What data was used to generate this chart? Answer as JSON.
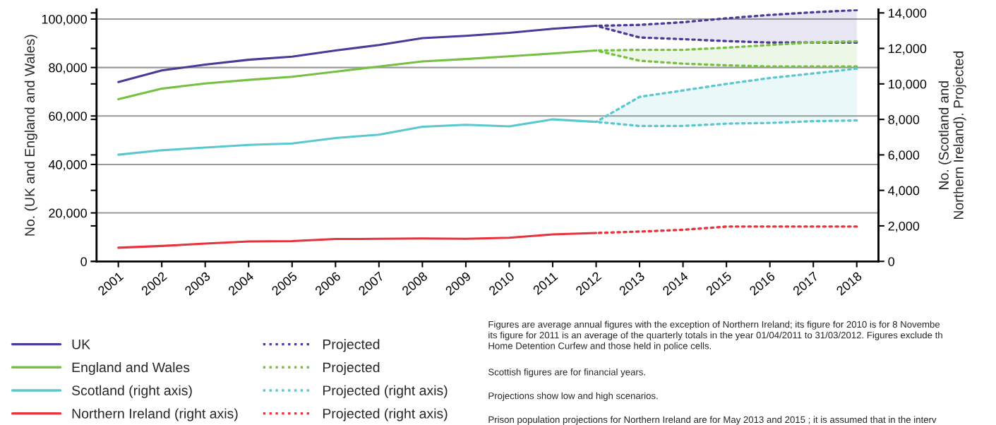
{
  "chart_data": {
    "type": "line",
    "ylabel": "No. (UK and England and Wales)",
    "y2label": "No. (Scotland and\nNorthern Ireland). Projected",
    "xlim": [
      2000.5,
      2018.5
    ],
    "xticks": [
      2001,
      2002,
      2003,
      2004,
      2005,
      2006,
      2007,
      2008,
      2009,
      2010,
      2011,
      2012,
      2013,
      2014,
      2015,
      2016,
      2017,
      2018
    ],
    "ylim": [
      0,
      104000
    ],
    "yticks": [
      0,
      {
        "value": 20000,
        "label": "20,000"
      },
      {
        "value": 40000,
        "label": "40,000"
      },
      {
        "value": 60000,
        "label": "60,000"
      },
      {
        "value": 80000,
        "label": "80,000"
      },
      {
        "value": 100000,
        "label": "100,000"
      }
    ],
    "y2lim": [
      0,
      14200
    ],
    "y2ticks": [
      0,
      {
        "value": 2000,
        "label": "2,000"
      },
      {
        "value": 4000,
        "label": "4,000"
      },
      {
        "value": 6000,
        "label": "6,000"
      },
      {
        "value": 8000,
        "label": "8,000"
      },
      {
        "value": 10000,
        "label": "10,000"
      },
      {
        "value": 12000,
        "label": "12,000"
      },
      {
        "value": 14000,
        "label": "14,000"
      }
    ],
    "grid": "y",
    "legend": "bottom",
    "marker": "none",
    "series": [
      {
        "name": "UK",
        "color": "#4b3a9a",
        "line_style": "solid",
        "x": [
          2001,
          2002,
          2003,
          2004,
          2005,
          2006,
          2007,
          2008,
          2009,
          2010,
          2011,
          2012
        ],
        "values": [
          74000,
          78800,
          81200,
          83200,
          84500,
          87000,
          89300,
          92100,
          93100,
          94300,
          96000,
          97200
        ]
      },
      {
        "name": "England and Wales",
        "color": "#76c043",
        "line_style": "solid",
        "x": [
          2001,
          2002,
          2003,
          2004,
          2005,
          2006,
          2007,
          2008,
          2009,
          2010,
          2011,
          2012
        ],
        "values": [
          66900,
          71300,
          73400,
          74900,
          76200,
          78300,
          80400,
          82500,
          83500,
          84600,
          85800,
          87000
        ]
      },
      {
        "name": "Scotland (right axis)",
        "color": "#5bc8d0",
        "line_style": "solid",
        "axis": "y2",
        "x": [
          2001,
          2002,
          2003,
          2004,
          2005,
          2006,
          2007,
          2008,
          2009,
          2010,
          2011,
          2012
        ],
        "values": [
          6010,
          6260,
          6410,
          6560,
          6640,
          6950,
          7140,
          7590,
          7700,
          7610,
          8000,
          7860
        ]
      },
      {
        "name": "Northern Ireland (right axis)",
        "color": "#e8323c",
        "line_style": "solid",
        "axis": "y2",
        "x": [
          2001,
          2002,
          2003,
          2004,
          2005,
          2006,
          2007,
          2008,
          2009,
          2010,
          2011,
          2012
        ],
        "values": [
          770,
          870,
          1000,
          1120,
          1140,
          1260,
          1270,
          1290,
          1270,
          1330,
          1520,
          1600
        ]
      },
      {
        "name": "Projected",
        "color": "#4b3a9a",
        "line_style": "dotted",
        "x": [
          2012,
          2013,
          2014,
          2015,
          2016,
          2017,
          2018
        ],
        "values": [
          97200,
          97600,
          98700,
          100300,
          101700,
          102800,
          103700
        ],
        "lower": [
          97200,
          92400,
          91700,
          90900,
          90300,
          90300,
          90300
        ],
        "upper": [
          97200,
          97600,
          98700,
          100300,
          101700,
          102800,
          103700
        ]
      },
      {
        "color": "#4b3a9a",
        "line_style": "dotted",
        "x": [
          2012,
          2013,
          2014,
          2015,
          2016,
          2017,
          2018
        ],
        "values": [
          97200,
          92400,
          91700,
          90900,
          90300,
          90300,
          90300
        ]
      },
      {
        "name": "Projected",
        "color": "#76c043",
        "line_style": "dotted",
        "x": [
          2012,
          2013,
          2014,
          2015,
          2016,
          2017,
          2018
        ],
        "values": [
          87000,
          87300,
          87300,
          88200,
          89300,
          90400,
          90800
        ],
        "lower": [
          87000,
          82800,
          81600,
          80900,
          80400,
          80400,
          80400
        ],
        "upper": [
          87000,
          87300,
          87300,
          88200,
          89300,
          90400,
          90800
        ]
      },
      {
        "color": "#76c043",
        "line_style": "dotted",
        "x": [
          2012,
          2013,
          2014,
          2015,
          2016,
          2017,
          2018
        ],
        "values": [
          87000,
          82800,
          81600,
          80900,
          80400,
          80400,
          80400
        ]
      },
      {
        "name": "Projected (right axis)",
        "color": "#5bc8d0",
        "line_style": "dotted",
        "axis": "y2",
        "x": [
          2012,
          2013,
          2014,
          2015,
          2016,
          2017,
          2018
        ],
        "values": [
          7860,
          9270,
          9630,
          10000,
          10330,
          10590,
          10860
        ],
        "lower": [
          7860,
          7630,
          7630,
          7760,
          7800,
          7900,
          7940
        ],
        "upper": [
          7860,
          9270,
          9630,
          10000,
          10330,
          10590,
          10860
        ]
      },
      {
        "color": "#5bc8d0",
        "line_style": "dotted",
        "axis": "y2",
        "x": [
          2012,
          2013,
          2014,
          2015,
          2016,
          2017,
          2018
        ],
        "values": [
          7860,
          7630,
          7630,
          7760,
          7800,
          7900,
          7940
        ]
      },
      {
        "name": "Projected (right axis)",
        "color": "#e8323c",
        "line_style": "dotted",
        "axis": "y2",
        "x": [
          2012,
          2013,
          2014,
          2015,
          2016,
          2017,
          2018
        ],
        "values": [
          1600,
          1680,
          1780,
          1960,
          1960,
          1960,
          1960
        ]
      }
    ],
    "annotations": [
      "Figures are average annual figures with the exception of Northern Ireland; its figure for 2010 is for 8 Novembe\nits figure for 2011 is an average of the quarterly totals in the year 01/04/2011 to 31/03/2012. Figures exclude th\nHome Detention Curfew and those held in police cells.",
      "Scottish figures are for financial years.",
      "Projections show low and high scenarios.",
      "Prison population projections for Northern Ireland are for May 2013 and 2015 ; it is assumed that in the interv\nfigures remain at the same level."
    ]
  }
}
